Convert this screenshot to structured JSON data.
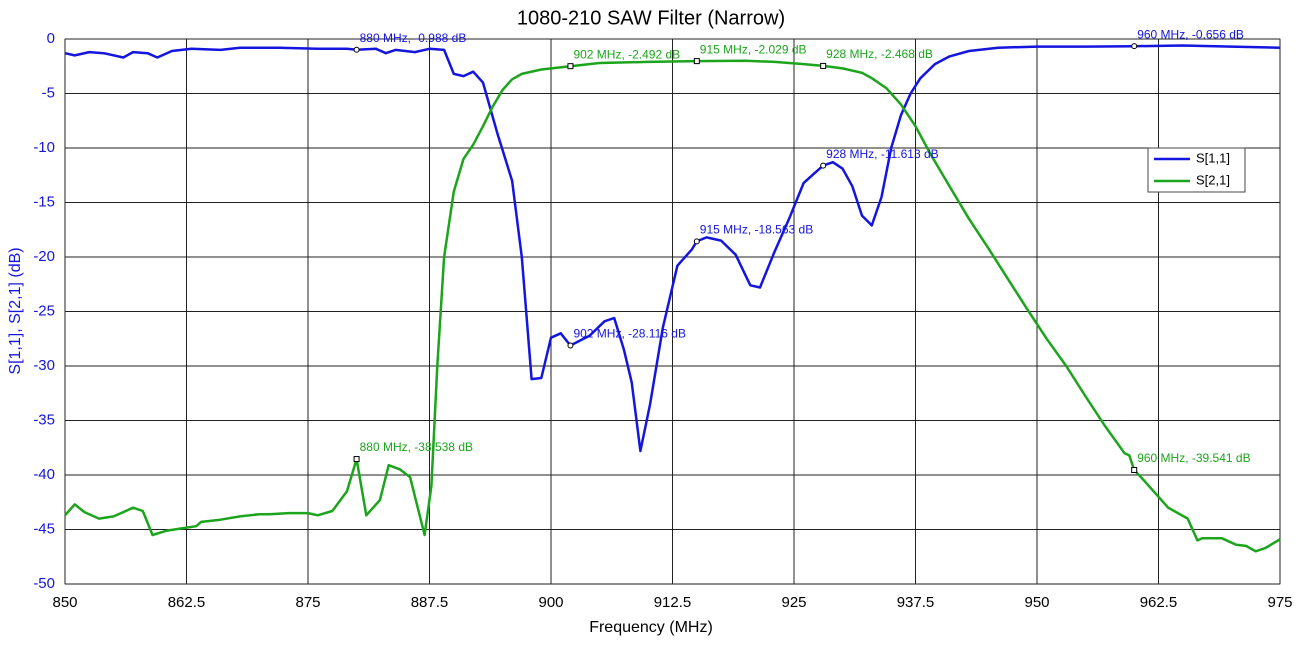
{
  "chart_data": {
    "type": "line",
    "title": "1080-210 SAW Filter (Narrow)",
    "x_label": "Frequency (MHz)",
    "y_label": "S[1,1], S[2,1] (dB)",
    "xlim": [
      850,
      975
    ],
    "ylim": [
      -50,
      0
    ],
    "xticks": [
      850,
      862.5,
      875,
      887.5,
      900,
      912.5,
      925,
      937.5,
      950,
      962.5,
      975
    ],
    "yticks": [
      0,
      -5,
      -10,
      -15,
      -20,
      -25,
      -30,
      -35,
      -40,
      -45,
      -50
    ],
    "grid": true,
    "legend_position": "upper right",
    "series": [
      {
        "name": "S[1,1]",
        "color": "#1515e0",
        "x": [
          850,
          851,
          852.5,
          854,
          856,
          857,
          858.5,
          859.5,
          861,
          863,
          866,
          868,
          872,
          876,
          879,
          880,
          882,
          883,
          884,
          886,
          887.5,
          889,
          890,
          891,
          892,
          893,
          894.5,
          896,
          897,
          898,
          899,
          900,
          901,
          902,
          904,
          905.5,
          906.5,
          907.5,
          908.3,
          909.2,
          910.2,
          911.5,
          913,
          914.5,
          915,
          916,
          917.5,
          919,
          920.5,
          921.5,
          923,
          924.5,
          926,
          927,
          928,
          929,
          930,
          931,
          932,
          933,
          934,
          935,
          936,
          937,
          938,
          939.5,
          941,
          943,
          946,
          950,
          955,
          960,
          965,
          970,
          975
        ],
        "values": [
          -1.3,
          -1.5,
          -1.2,
          -1.3,
          -1.7,
          -1.2,
          -1.3,
          -1.7,
          -1.1,
          -0.9,
          -1.0,
          -0.8,
          -0.8,
          -0.9,
          -0.9,
          -0.988,
          -0.9,
          -1.3,
          -1.0,
          -1.2,
          -0.9,
          -1.0,
          -3.2,
          -3.4,
          -3.0,
          -4.0,
          -8.7,
          -13,
          -20,
          -31.2,
          -31.1,
          -27.4,
          -27.0,
          -28.116,
          -27.2,
          -25.9,
          -25.6,
          -28.5,
          -31.5,
          -37.8,
          -33.5,
          -26.5,
          -20.8,
          -19.3,
          -18.563,
          -18.2,
          -18.5,
          -19.8,
          -22.6,
          -22.8,
          -19.5,
          -16.5,
          -13.2,
          -12.4,
          -11.613,
          -11.3,
          -11.9,
          -13.5,
          -16.2,
          -17.1,
          -14.5,
          -10,
          -7,
          -5,
          -3.6,
          -2.3,
          -1.6,
          -1.1,
          -0.8,
          -0.7,
          -0.7,
          -0.656,
          -0.6,
          -0.7,
          -0.8
        ]
      },
      {
        "name": "S[2,1]",
        "color": "#1ca51c",
        "x": [
          850,
          851,
          852,
          853.5,
          855,
          856,
          857,
          858,
          859,
          860.5,
          862,
          863.5,
          864,
          866,
          868,
          870,
          871,
          873,
          875,
          876,
          877.5,
          879,
          880,
          881,
          882.4,
          883.3,
          884.5,
          885.5,
          887,
          887.7,
          888.3,
          889,
          890,
          891,
          892,
          893,
          894,
          895,
          896,
          897,
          899,
          902,
          905,
          910,
          915,
          920,
          923,
          926,
          928,
          930,
          932,
          933,
          934.5,
          936,
          937.5,
          939,
          941,
          943,
          945,
          947,
          949,
          951,
          953,
          955,
          957,
          959,
          959.5,
          960,
          961,
          962.5,
          963.5,
          965.5,
          966.5,
          967,
          968,
          969,
          970.5,
          971.5,
          972.5,
          973.5,
          975
        ],
        "values": [
          -43.7,
          -42.7,
          -43.4,
          -44.0,
          -43.8,
          -43.4,
          -43.0,
          -43.3,
          -45.5,
          -45.1,
          -44.9,
          -44.7,
          -44.3,
          -44.1,
          -43.8,
          -43.6,
          -43.6,
          -43.5,
          -43.5,
          -43.7,
          -43.3,
          -41.5,
          -38.538,
          -43.7,
          -42.3,
          -39.1,
          -39.5,
          -40.2,
          -45.5,
          -41,
          -30,
          -20,
          -14,
          -11,
          -9.7,
          -8,
          -6.2,
          -4.7,
          -3.7,
          -3.2,
          -2.8,
          -2.492,
          -2.2,
          -2.1,
          -2.029,
          -2.0,
          -2.1,
          -2.3,
          -2.468,
          -2.7,
          -3.1,
          -3.6,
          -4.5,
          -6,
          -8,
          -10.5,
          -13.5,
          -16.5,
          -19.2,
          -22,
          -24.8,
          -27.5,
          -30,
          -32.8,
          -35.5,
          -38,
          -38.2,
          -39.541,
          -40.5,
          -42,
          -43,
          -44,
          -46,
          -45.8,
          -45.8,
          -45.8,
          -46.4,
          -46.5,
          -47,
          -46.7,
          -45.9
        ]
      }
    ],
    "markers": [
      {
        "series": 0,
        "x": 880,
        "y": -0.988,
        "label": "880 MHz, -0.988 dB"
      },
      {
        "series": 0,
        "x": 902,
        "y": -28.116,
        "label": "902 MHz, -28.116 dB"
      },
      {
        "series": 0,
        "x": 915,
        "y": -18.563,
        "label": "915 MHz, -18.563 dB"
      },
      {
        "series": 0,
        "x": 928,
        "y": -11.613,
        "label": "928 MHz, -11.613 dB"
      },
      {
        "series": 0,
        "x": 960,
        "y": -0.656,
        "label": "960 MHz, -0.656 dB"
      },
      {
        "series": 1,
        "x": 880,
        "y": -38.538,
        "label": "880 MHz, -38.538 dB"
      },
      {
        "series": 1,
        "x": 902,
        "y": -2.492,
        "label": "902 MHz, -2.492 dB"
      },
      {
        "series": 1,
        "x": 915,
        "y": -2.029,
        "label": "915 MHz, -2.029 dB"
      },
      {
        "series": 1,
        "x": 928,
        "y": -2.468,
        "label": "928 MHz, -2.468 dB"
      },
      {
        "series": 1,
        "x": 960,
        "y": -39.541,
        "label": "960 MHz, -39.541 dB"
      }
    ]
  }
}
